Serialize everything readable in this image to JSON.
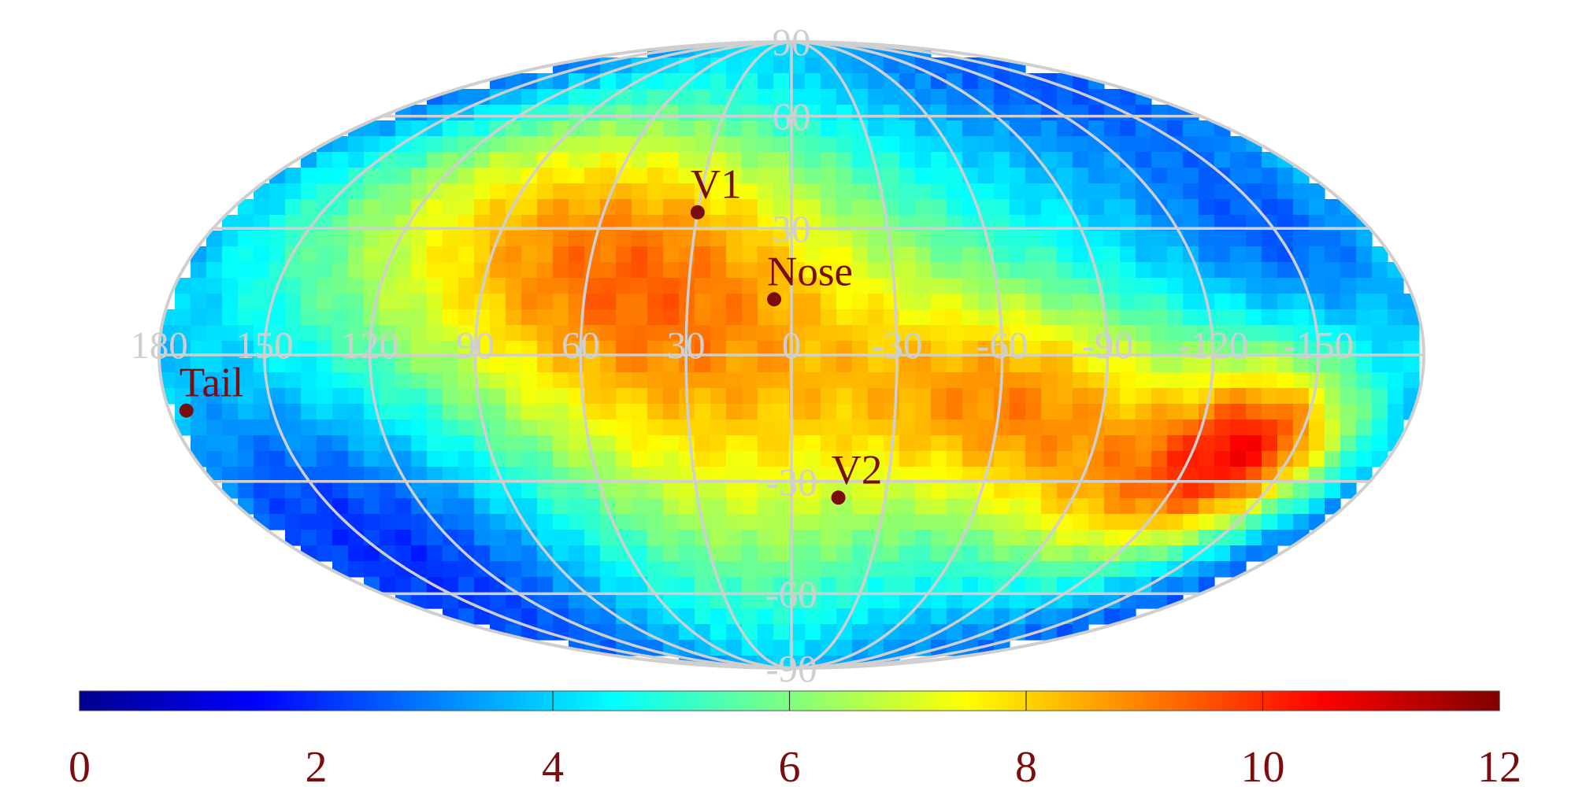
{
  "map": {
    "projection": "mollweide",
    "longitude_labels": [
      "180",
      "150",
      "120",
      "90",
      "60",
      "30",
      "0",
      "-30",
      "-60",
      "-90",
      "-120",
      "-150"
    ],
    "latitude_labels": [
      "90",
      "60",
      "30",
      "-30",
      "-60",
      "-90"
    ],
    "markers": [
      {
        "name": "V1",
        "lon": 30,
        "lat": 34
      },
      {
        "name": "Nose",
        "lon": 5,
        "lat": 13
      },
      {
        "name": "V2",
        "lon": -15,
        "lat": -34
      },
      {
        "name": "Tail",
        "lon": 175,
        "lat": -13
      }
    ],
    "colormap": "jet",
    "colors": {
      "grid": "#cfcfcf",
      "marker": "#7a0d0d"
    },
    "features": [
      {
        "lon": 45,
        "lat": 15,
        "value": 6.9,
        "width": 55,
        "height": 28
      },
      {
        "lon": 20,
        "lat": 0,
        "value": 6.2,
        "width": 60,
        "height": 40
      },
      {
        "lon": 100,
        "lat": 40,
        "value": 6.0,
        "width": 50,
        "height": 25
      },
      {
        "lon": -70,
        "lat": -10,
        "value": 7.8,
        "width": 35,
        "height": 18
      },
      {
        "lon": -140,
        "lat": -20,
        "value": 9.2,
        "width": 20,
        "height": 15
      },
      {
        "lon": -110,
        "lat": -35,
        "value": 7.4,
        "width": 30,
        "height": 15
      },
      {
        "lon": -150,
        "lat": 30,
        "value": 2.2,
        "width": 25,
        "height": 15
      },
      {
        "lon": 140,
        "lat": -45,
        "value": 1.6,
        "width": 50,
        "height": 25
      },
      {
        "lon": 150,
        "lat": 70,
        "value": 2.8,
        "width": 70,
        "height": 15
      },
      {
        "lon": -120,
        "lat": 70,
        "value": 2.8,
        "width": 70,
        "height": 15
      },
      {
        "lon": -120,
        "lat": -75,
        "value": 3.0,
        "width": 70,
        "height": 10
      },
      {
        "lon": 10,
        "lat": -40,
        "value": 5.0,
        "width": 50,
        "height": 25
      }
    ]
  },
  "colorbar": {
    "ticks": [
      "0",
      "2",
      "4",
      "6",
      "8",
      "10",
      "12"
    ],
    "min": 0,
    "max": 12
  }
}
